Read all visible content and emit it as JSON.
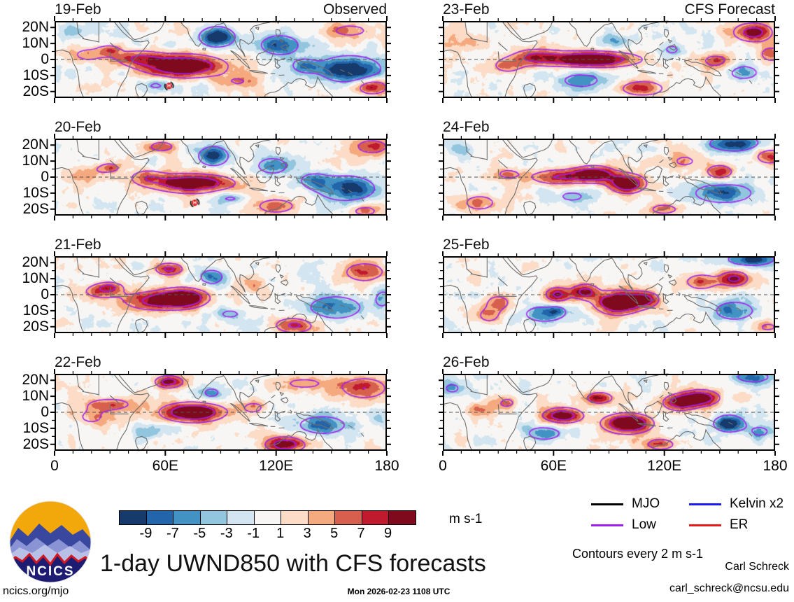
{
  "chart_data": {
    "type": "heatmap",
    "title": "1-day UWND850 with CFS forecasts",
    "units_label": "m s-1",
    "contour_note": "Contours every 2 m s-1",
    "columns": [
      {
        "header": "Observed"
      },
      {
        "header": "CFS Forecast"
      }
    ],
    "x_tick_labels": [
      "0",
      "60E",
      "120E",
      "180"
    ],
    "x_tick_lons": [
      0,
      60,
      120,
      180
    ],
    "y_tick_labels": [
      "20N",
      "10N",
      "0",
      "10S",
      "20S"
    ],
    "y_tick_lats": [
      20,
      10,
      0,
      -10,
      -20
    ],
    "lon_range": [
      0,
      180
    ],
    "lat_range": [
      -24,
      24
    ],
    "colorbar": {
      "tick_labels": [
        "-9",
        "-7",
        "-5",
        "-3",
        "-1",
        "1",
        "3",
        "5",
        "7",
        "9"
      ],
      "colors": [
        "#153a6b",
        "#2265ab",
        "#4292c3",
        "#92c5de",
        "#d2e5f0",
        "#f7f6f4",
        "#fcdcc6",
        "#f5a97f",
        "#d6604d",
        "#c01a2e",
        "#7f0a1e"
      ]
    },
    "legend": [
      {
        "label": "MJO",
        "color": "#000000"
      },
      {
        "label": "Kelvin x2",
        "color": "#1a1aee"
      },
      {
        "label": "Low",
        "color": "#a020f0"
      },
      {
        "label": "ER",
        "color": "#e41a1c"
      }
    ],
    "contour_color": "#a020f0",
    "features_format": [
      "lon_E",
      "lat_N",
      "amplitude_ms",
      "sigma_lon_deg",
      "sigma_lat_deg"
    ],
    "panels": [
      {
        "date": "19-Feb",
        "column": "Observed",
        "cyclone": [
          62,
          -16.5
        ],
        "features": [
          [
            70,
            -4,
            13,
            22,
            7
          ],
          [
            45,
            1,
            7,
            12,
            5
          ],
          [
            30,
            6,
            6,
            6,
            3
          ],
          [
            88,
            14,
            -13,
            9,
            6
          ],
          [
            122,
            9,
            -8,
            12,
            7
          ],
          [
            160,
            -6,
            -12,
            16,
            8
          ],
          [
            135,
            -4,
            -6,
            8,
            5
          ],
          [
            172,
            -17,
            9,
            9,
            5
          ],
          [
            160,
            18,
            5,
            16,
            6
          ],
          [
            18,
            3,
            5,
            12,
            6
          ],
          [
            55,
            -16,
            -5,
            8,
            4
          ],
          [
            100,
            -14,
            4,
            12,
            5
          ],
          [
            8,
            18,
            -4,
            8,
            5
          ]
        ]
      },
      {
        "date": "20-Feb",
        "column": "Observed",
        "cyclone": [
          76,
          -16
        ],
        "features": [
          [
            75,
            -4,
            12,
            22,
            6
          ],
          [
            50,
            0,
            6,
            10,
            5
          ],
          [
            30,
            6,
            6,
            6,
            3
          ],
          [
            86,
            13,
            -11,
            8,
            6
          ],
          [
            118,
            7,
            -7,
            10,
            6
          ],
          [
            158,
            -7,
            -10,
            16,
            8
          ],
          [
            140,
            -2,
            -6,
            8,
            5
          ],
          [
            172,
            19,
            7,
            10,
            5
          ],
          [
            120,
            -18,
            7,
            12,
            5
          ],
          [
            168,
            -21,
            6,
            9,
            4
          ],
          [
            58,
            19,
            6,
            9,
            4
          ],
          [
            18,
            2,
            4,
            12,
            6
          ],
          [
            95,
            -13,
            -5,
            9,
            4
          ]
        ]
      },
      {
        "date": "21-Feb",
        "column": "Observed",
        "cyclone": null,
        "features": [
          [
            70,
            -2,
            13,
            13,
            6
          ],
          [
            52,
            -4,
            8,
            16,
            6
          ],
          [
            62,
            16,
            9,
            8,
            4
          ],
          [
            30,
            5,
            6,
            7,
            3
          ],
          [
            85,
            11,
            -8,
            7,
            5
          ],
          [
            152,
            -8,
            -8,
            16,
            8
          ],
          [
            130,
            -19,
            9,
            11,
            5
          ],
          [
            168,
            14,
            7,
            13,
            7
          ],
          [
            95,
            -12,
            -5,
            9,
            4
          ],
          [
            25,
            2,
            6,
            12,
            5
          ],
          [
            178,
            -2,
            -5,
            6,
            8
          ],
          [
            110,
            5,
            4,
            8,
            5
          ]
        ]
      },
      {
        "date": "22-Feb",
        "column": "Observed",
        "cyclone": null,
        "features": [
          [
            75,
            0,
            13,
            17,
            6
          ],
          [
            62,
            19,
            10,
            8,
            4
          ],
          [
            30,
            5,
            7,
            13,
            4
          ],
          [
            85,
            12,
            -6,
            6,
            4
          ],
          [
            145,
            -8,
            -7,
            16,
            7
          ],
          [
            125,
            -20,
            11,
            11,
            5
          ],
          [
            168,
            15,
            8,
            13,
            7
          ],
          [
            135,
            18,
            5,
            16,
            5
          ],
          [
            50,
            -12,
            -4,
            10,
            5
          ],
          [
            20,
            -3,
            5,
            10,
            6
          ],
          [
            108,
            3,
            5,
            8,
            5
          ],
          [
            175,
            -2,
            -4,
            6,
            6
          ]
        ]
      },
      {
        "date": "23-Feb",
        "column": "CFS Forecast",
        "cyclone": null,
        "features": [
          [
            80,
            0,
            13,
            26,
            5
          ],
          [
            50,
            2,
            7,
            13,
            5
          ],
          [
            168,
            17,
            10,
            11,
            6
          ],
          [
            148,
            -1,
            6,
            9,
            5
          ],
          [
            75,
            -13,
            -6,
            14,
            6
          ],
          [
            124,
            6,
            -5,
            7,
            5
          ],
          [
            163,
            -8,
            -6,
            11,
            6
          ],
          [
            35,
            -4,
            6,
            9,
            5
          ],
          [
            108,
            -18,
            8,
            13,
            5
          ],
          [
            10,
            10,
            4,
            10,
            6
          ],
          [
            95,
            12,
            -4,
            8,
            4
          ],
          [
            178,
            3,
            6,
            8,
            6
          ]
        ]
      },
      {
        "date": "24-Feb",
        "column": "CFS Forecast",
        "cyclone": null,
        "features": [
          [
            82,
            2,
            11,
            11,
            5
          ],
          [
            100,
            -4,
            12,
            10,
            6
          ],
          [
            62,
            0,
            8,
            16,
            5
          ],
          [
            158,
            21,
            -10,
            14,
            5
          ],
          [
            177,
            13,
            8,
            8,
            5
          ],
          [
            150,
            3,
            8,
            8,
            5
          ],
          [
            152,
            -10,
            -8,
            18,
            7
          ],
          [
            70,
            -12,
            -5,
            11,
            5
          ],
          [
            20,
            -16,
            6,
            11,
            6
          ],
          [
            10,
            17,
            -4,
            9,
            5
          ],
          [
            35,
            2,
            5,
            8,
            4
          ],
          [
            120,
            -20,
            6,
            10,
            4
          ],
          [
            131,
            10,
            5,
            9,
            5
          ]
        ]
      },
      {
        "date": "25-Feb",
        "column": "CFS Forecast",
        "cyclone": null,
        "features": [
          [
            95,
            -5,
            14,
            12,
            7
          ],
          [
            62,
            0,
            9,
            7,
            5
          ],
          [
            77,
            2,
            9,
            7,
            5
          ],
          [
            140,
            8,
            8,
            9,
            5
          ],
          [
            158,
            10,
            9,
            8,
            5
          ],
          [
            167,
            22,
            -10,
            13,
            4
          ],
          [
            55,
            -12,
            -7,
            13,
            6
          ],
          [
            62,
            -10,
            -4,
            4,
            3
          ],
          [
            158,
            -10,
            -7,
            13,
            7
          ],
          [
            30,
            -5,
            7,
            7,
            5
          ],
          [
            25,
            -13,
            6,
            7,
            5
          ],
          [
            110,
            -3,
            8,
            8,
            5
          ],
          [
            176,
            -20,
            5,
            8,
            4
          ]
        ]
      },
      {
        "date": "26-Feb",
        "column": "CFS Forecast",
        "cyclone": null,
        "features": [
          [
            65,
            -2,
            11,
            11,
            5
          ],
          [
            100,
            -7,
            14,
            13,
            6
          ],
          [
            128,
            6,
            10,
            9,
            5
          ],
          [
            140,
            9,
            11,
            10,
            5
          ],
          [
            85,
            9,
            8,
            8,
            4
          ],
          [
            155,
            -7,
            -12,
            8,
            5
          ],
          [
            168,
            22,
            -7,
            11,
            4
          ],
          [
            55,
            -13,
            -7,
            11,
            5
          ],
          [
            5,
            15,
            -5,
            7,
            5
          ],
          [
            118,
            -20,
            7,
            9,
            4
          ],
          [
            172,
            -12,
            -5,
            8,
            5
          ],
          [
            35,
            6,
            5,
            6,
            4
          ],
          [
            20,
            2,
            4,
            10,
            5
          ]
        ]
      }
    ]
  },
  "logo": {
    "text": "NCICS"
  },
  "footer": {
    "site": "ncics.org/mjo",
    "timestamp": "Mon 2026-02-23 1108 UTC",
    "author": "Carl Schreck",
    "email": "carl_schreck@ncsu.edu"
  }
}
